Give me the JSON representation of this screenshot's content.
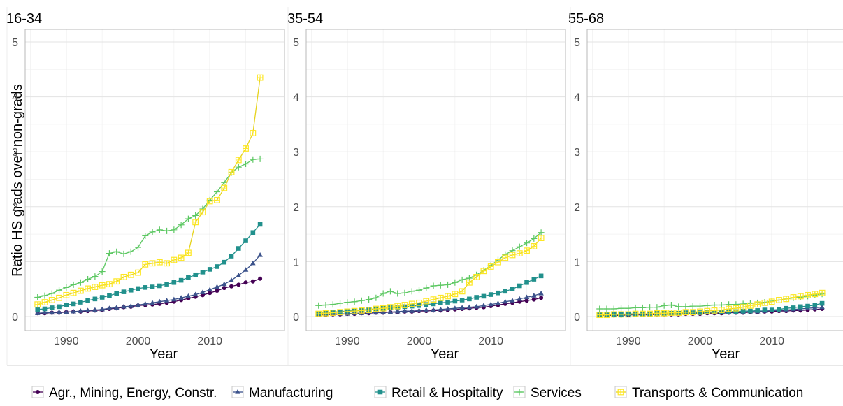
{
  "chart_data": {
    "type": "line",
    "ylabel": "Ratio HS grads over non-grads",
    "xlabel": "Year",
    "xlim": [
      1985,
      2018
    ],
    "ylim": [
      0,
      5.2
    ],
    "x_ticks": [
      1990,
      2000,
      2010
    ],
    "y_ticks": [
      0,
      1,
      2,
      3,
      4,
      5
    ],
    "grid": true,
    "legend_position": "bottom",
    "colors": {
      "agr": "#440154",
      "man": "#3b528b",
      "ret": "#21908c",
      "ser": "#5dc863",
      "tra": "#fde725"
    },
    "series_names": [
      {
        "key": "agr",
        "name": "Agr., Mining, Energy, Constr."
      },
      {
        "key": "man",
        "name": "Manufacturing"
      },
      {
        "key": "ret",
        "name": "Retail & Hospitality"
      },
      {
        "key": "ser",
        "name": "Services"
      },
      {
        "key": "tra",
        "name": "Transports & Communication"
      }
    ],
    "x": [
      1986,
      1987,
      1988,
      1989,
      1990,
      1991,
      1992,
      1993,
      1994,
      1995,
      1996,
      1997,
      1998,
      1999,
      2000,
      2001,
      2002,
      2003,
      2004,
      2005,
      2006,
      2007,
      2008,
      2009,
      2010,
      2011,
      2012,
      2013,
      2014,
      2015,
      2016,
      2017
    ],
    "panels": [
      {
        "title": "16-34",
        "series": {
          "agr": [
            0.06,
            0.06,
            0.07,
            0.07,
            0.08,
            0.09,
            0.09,
            0.1,
            0.11,
            0.12,
            0.14,
            0.15,
            0.17,
            0.18,
            0.2,
            0.21,
            0.22,
            0.23,
            0.25,
            0.27,
            0.3,
            0.33,
            0.36,
            0.39,
            0.43,
            0.47,
            0.52,
            0.55,
            0.58,
            0.62,
            0.64,
            0.69
          ],
          "man": [
            0.06,
            0.07,
            0.07,
            0.08,
            0.08,
            0.09,
            0.1,
            0.11,
            0.12,
            0.13,
            0.15,
            0.16,
            0.18,
            0.19,
            0.21,
            0.23,
            0.25,
            0.27,
            0.29,
            0.31,
            0.34,
            0.37,
            0.4,
            0.44,
            0.49,
            0.54,
            0.59,
            0.66,
            0.75,
            0.85,
            0.97,
            1.12
          ],
          "ret": [
            0.13,
            0.14,
            0.16,
            0.18,
            0.21,
            0.23,
            0.26,
            0.29,
            0.32,
            0.35,
            0.38,
            0.42,
            0.45,
            0.48,
            0.51,
            0.53,
            0.54,
            0.56,
            0.59,
            0.62,
            0.66,
            0.71,
            0.76,
            0.81,
            0.86,
            0.91,
            0.99,
            1.1,
            1.24,
            1.38,
            1.53,
            1.68
          ],
          "ser": [
            0.35,
            0.38,
            0.42,
            0.48,
            0.53,
            0.58,
            0.62,
            0.68,
            0.73,
            0.82,
            1.15,
            1.18,
            1.14,
            1.18,
            1.26,
            1.47,
            1.54,
            1.58,
            1.56,
            1.58,
            1.67,
            1.78,
            1.84,
            1.96,
            2.12,
            2.27,
            2.44,
            2.62,
            2.72,
            2.78,
            2.86,
            2.87
          ],
          "tra": [
            0.22,
            0.26,
            0.3,
            0.34,
            0.39,
            0.43,
            0.47,
            0.51,
            0.54,
            0.57,
            0.59,
            0.64,
            0.72,
            0.76,
            0.8,
            0.95,
            0.97,
            0.99,
            0.97,
            1.03,
            1.07,
            1.16,
            1.72,
            1.9,
            2.1,
            2.12,
            2.34,
            2.63,
            2.85,
            3.06,
            3.34,
            4.35
          ]
        }
      },
      {
        "title": "35-54",
        "series": {
          "agr": [
            0.03,
            0.03,
            0.04,
            0.04,
            0.05,
            0.05,
            0.06,
            0.06,
            0.07,
            0.07,
            0.08,
            0.08,
            0.09,
            0.09,
            0.1,
            0.1,
            0.11,
            0.11,
            0.12,
            0.13,
            0.14,
            0.15,
            0.16,
            0.17,
            0.19,
            0.21,
            0.23,
            0.25,
            0.27,
            0.29,
            0.31,
            0.34
          ],
          "man": [
            0.04,
            0.04,
            0.05,
            0.05,
            0.05,
            0.06,
            0.06,
            0.07,
            0.07,
            0.08,
            0.08,
            0.09,
            0.1,
            0.1,
            0.11,
            0.12,
            0.12,
            0.13,
            0.14,
            0.15,
            0.16,
            0.17,
            0.18,
            0.2,
            0.22,
            0.24,
            0.27,
            0.29,
            0.32,
            0.35,
            0.38,
            0.42
          ],
          "ret": [
            0.06,
            0.07,
            0.08,
            0.09,
            0.1,
            0.11,
            0.12,
            0.13,
            0.14,
            0.15,
            0.16,
            0.17,
            0.18,
            0.19,
            0.2,
            0.22,
            0.23,
            0.25,
            0.26,
            0.28,
            0.3,
            0.32,
            0.35,
            0.37,
            0.4,
            0.43,
            0.46,
            0.5,
            0.56,
            0.62,
            0.68,
            0.74
          ],
          "ser": [
            0.2,
            0.21,
            0.22,
            0.24,
            0.26,
            0.27,
            0.29,
            0.31,
            0.34,
            0.42,
            0.46,
            0.42,
            0.43,
            0.46,
            0.48,
            0.52,
            0.56,
            0.57,
            0.58,
            0.62,
            0.67,
            0.7,
            0.76,
            0.84,
            0.93,
            1.03,
            1.13,
            1.2,
            1.27,
            1.34,
            1.42,
            1.53
          ],
          "tra": [
            0.05,
            0.06,
            0.07,
            0.08,
            0.09,
            0.1,
            0.11,
            0.12,
            0.14,
            0.15,
            0.17,
            0.19,
            0.21,
            0.23,
            0.25,
            0.28,
            0.31,
            0.34,
            0.37,
            0.41,
            0.46,
            0.62,
            0.72,
            0.83,
            0.91,
            0.99,
            1.07,
            1.12,
            1.15,
            1.2,
            1.28,
            1.43
          ]
        }
      },
      {
        "title": "55-68",
        "series": {
          "agr": [
            0.02,
            0.02,
            0.02,
            0.02,
            0.03,
            0.03,
            0.03,
            0.03,
            0.04,
            0.04,
            0.04,
            0.04,
            0.05,
            0.05,
            0.05,
            0.06,
            0.06,
            0.06,
            0.07,
            0.07,
            0.07,
            0.08,
            0.08,
            0.09,
            0.09,
            0.1,
            0.1,
            0.11,
            0.11,
            0.12,
            0.13,
            0.14
          ],
          "man": [
            0.03,
            0.03,
            0.03,
            0.03,
            0.04,
            0.04,
            0.04,
            0.04,
            0.05,
            0.05,
            0.05,
            0.05,
            0.06,
            0.06,
            0.06,
            0.07,
            0.07,
            0.07,
            0.08,
            0.08,
            0.08,
            0.09,
            0.09,
            0.1,
            0.11,
            0.11,
            0.12,
            0.13,
            0.14,
            0.15,
            0.16,
            0.17
          ],
          "ret": [
            0.04,
            0.04,
            0.04,
            0.04,
            0.05,
            0.05,
            0.05,
            0.05,
            0.06,
            0.06,
            0.06,
            0.06,
            0.07,
            0.07,
            0.07,
            0.08,
            0.08,
            0.08,
            0.09,
            0.09,
            0.1,
            0.1,
            0.11,
            0.12,
            0.12,
            0.13,
            0.15,
            0.16,
            0.18,
            0.19,
            0.21,
            0.24
          ],
          "ser": [
            0.14,
            0.14,
            0.14,
            0.15,
            0.15,
            0.16,
            0.16,
            0.17,
            0.17,
            0.2,
            0.21,
            0.18,
            0.18,
            0.19,
            0.19,
            0.2,
            0.21,
            0.21,
            0.22,
            0.22,
            0.23,
            0.24,
            0.25,
            0.26,
            0.28,
            0.3,
            0.32,
            0.34,
            0.35,
            0.37,
            0.39,
            0.41
          ],
          "tra": [
            0.03,
            0.03,
            0.04,
            0.04,
            0.04,
            0.05,
            0.05,
            0.05,
            0.06,
            0.06,
            0.07,
            0.07,
            0.08,
            0.08,
            0.09,
            0.1,
            0.11,
            0.12,
            0.14,
            0.15,
            0.17,
            0.2,
            0.22,
            0.25,
            0.27,
            0.3,
            0.32,
            0.35,
            0.37,
            0.39,
            0.41,
            0.43
          ]
        }
      }
    ]
  }
}
